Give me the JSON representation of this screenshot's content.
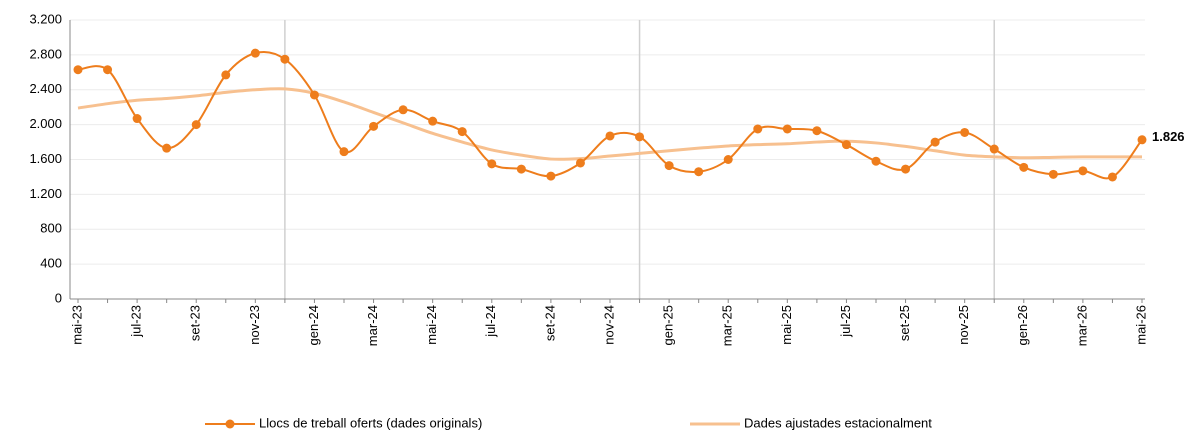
{
  "chart_data": {
    "type": "line",
    "categories": [
      "mai-23",
      null,
      "jul-23",
      null,
      "set-23",
      null,
      "nov-23",
      null,
      "gen-24",
      null,
      "mar-24",
      null,
      "mai-24",
      null,
      "jul-24",
      null,
      "set-24",
      null,
      "nov-24",
      null,
      "gen-25",
      null,
      "mar-25",
      null,
      "mai-25",
      null,
      "jul-25",
      null,
      "set-25",
      null,
      "nov-25",
      null,
      "gen-26",
      null,
      "mar-26",
      null,
      "mai-26"
    ],
    "series": [
      {
        "name": "Llocs de treball oferts (dades originals)",
        "color": "#ee7d1c",
        "markers": true,
        "values": [
          2630,
          2630,
          2070,
          1730,
          2000,
          2570,
          2820,
          2750,
          2340,
          1690,
          1980,
          2170,
          2040,
          1920,
          1550,
          1490,
          1410,
          1560,
          1870,
          1860,
          1530,
          1460,
          1600,
          1950,
          1950,
          1930,
          1770,
          1580,
          1490,
          1800,
          1910,
          1720,
          1510,
          1430,
          1470,
          1400,
          1826
        ],
        "value_labels": [
          null,
          null,
          null,
          null,
          null,
          null,
          null,
          null,
          null,
          null,
          null,
          null,
          null,
          null,
          null,
          null,
          null,
          null,
          null,
          null,
          null,
          null,
          null,
          null,
          null,
          null,
          null,
          null,
          null,
          null,
          null,
          null,
          null,
          null,
          null,
          null,
          "1.826"
        ]
      },
      {
        "name": "Dades ajustades estacionalment",
        "color": "#f7c08f",
        "markers": false,
        "values": [
          2190,
          2240,
          2280,
          2300,
          2330,
          2370,
          2400,
          2410,
          2360,
          2260,
          2140,
          2020,
          1900,
          1800,
          1710,
          1650,
          1605,
          1610,
          1640,
          1670,
          1700,
          1730,
          1755,
          1770,
          1780,
          1800,
          1810,
          1790,
          1750,
          1700,
          1650,
          1630,
          1620,
          1625,
          1630,
          1630,
          1630
        ]
      }
    ],
    "ylim": [
      0,
      3200
    ],
    "yticks": [
      0,
      {
        "value": 400,
        "label": "400"
      },
      {
        "value": 800,
        "label": "800"
      },
      {
        "value": 1200,
        "label": "1.200"
      },
      {
        "value": 1600,
        "label": "1.600"
      },
      {
        "value": 2000,
        "label": "2.000"
      },
      {
        "value": 2400,
        "label": "2.400"
      },
      {
        "value": 2800,
        "label": "2.800"
      },
      {
        "value": 3200,
        "label": "3.200"
      }
    ],
    "grid": true,
    "legend": "bottom"
  }
}
